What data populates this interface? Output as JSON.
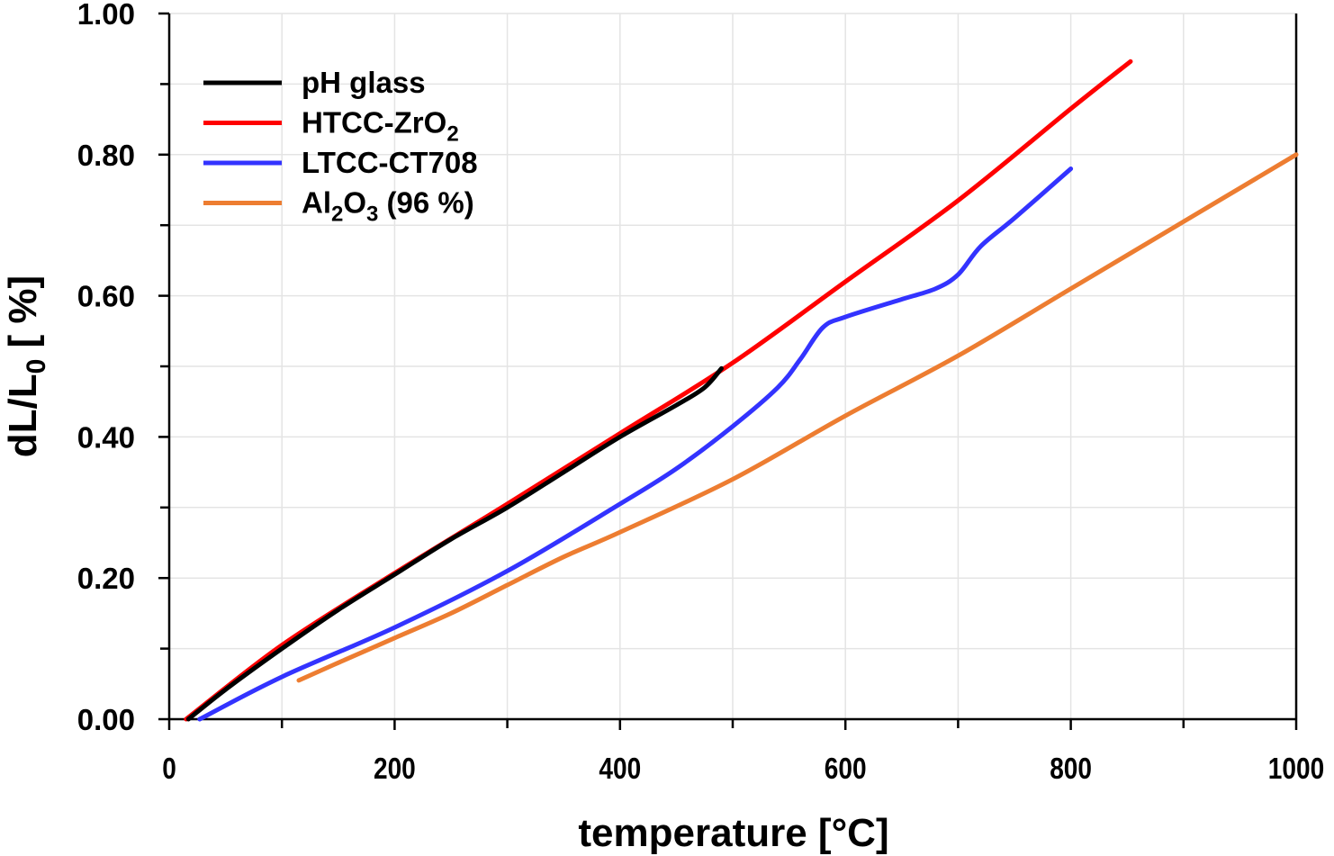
{
  "chart_data": {
    "type": "line",
    "title": "",
    "xlabel": "temperature [°C]",
    "ylabel_parts": {
      "main": "dL/L",
      "sub": "0",
      "tail": " [ %]"
    },
    "xlim": [
      0,
      1000
    ],
    "ylim": [
      0,
      1.0
    ],
    "x_ticks": [
      0,
      200,
      400,
      600,
      800,
      1000
    ],
    "x_minor_ticks": [
      100,
      300,
      500,
      700,
      900
    ],
    "y_ticks": [
      0.0,
      0.2,
      0.4,
      0.6,
      0.8,
      1.0
    ],
    "y_tick_labels": [
      "0.00",
      "0.20",
      "0.40",
      "0.60",
      "0.80",
      "1.00"
    ],
    "y_minor_ticks": [
      0.1,
      0.3,
      0.5,
      0.7,
      0.9
    ],
    "grid": true,
    "legend_position": "top-left",
    "series": [
      {
        "name": "pH glass",
        "legend_parts": [
          {
            "t": "pH glass"
          }
        ],
        "color": "#000000",
        "x": [
          17,
          50,
          100,
          150,
          200,
          250,
          300,
          350,
          400,
          450,
          475,
          490
        ],
        "y": [
          0.0,
          0.042,
          0.1,
          0.155,
          0.205,
          0.255,
          0.3,
          0.35,
          0.4,
          0.445,
          0.47,
          0.497
        ]
      },
      {
        "name": "HTCC-ZrO2",
        "legend_parts": [
          {
            "t": "HTCC-ZrO"
          },
          {
            "t": "2",
            "sub": true
          }
        ],
        "color": "#ff0000",
        "x": [
          15,
          100,
          200,
          300,
          400,
          500,
          600,
          700,
          800,
          853
        ],
        "y": [
          0.0,
          0.105,
          0.207,
          0.305,
          0.405,
          0.505,
          0.62,
          0.735,
          0.865,
          0.932
        ]
      },
      {
        "name": "LTCC-CT708",
        "legend_parts": [
          {
            "t": "LTCC-CT708"
          }
        ],
        "color": "#3333ff",
        "x": [
          27,
          100,
          200,
          300,
          400,
          450,
          500,
          540,
          560,
          580,
          600,
          650,
          680,
          700,
          720,
          750,
          800
        ],
        "y": [
          0.0,
          0.06,
          0.13,
          0.21,
          0.305,
          0.355,
          0.415,
          0.47,
          0.51,
          0.555,
          0.57,
          0.595,
          0.61,
          0.63,
          0.67,
          0.71,
          0.78
        ]
      },
      {
        "name": "Al2O3 (96 %)",
        "legend_parts": [
          {
            "t": "Al"
          },
          {
            "t": "2",
            "sub": true
          },
          {
            "t": "O"
          },
          {
            "t": "3",
            "sub": true
          },
          {
            "t": " (96 %)"
          }
        ],
        "color": "#ed7d31",
        "x": [
          115,
          150,
          200,
          250,
          300,
          350,
          400,
          500,
          600,
          700,
          800,
          900,
          1000
        ],
        "y": [
          0.055,
          0.08,
          0.115,
          0.15,
          0.19,
          0.23,
          0.265,
          0.34,
          0.43,
          0.515,
          0.61,
          0.705,
          0.8
        ]
      }
    ]
  }
}
